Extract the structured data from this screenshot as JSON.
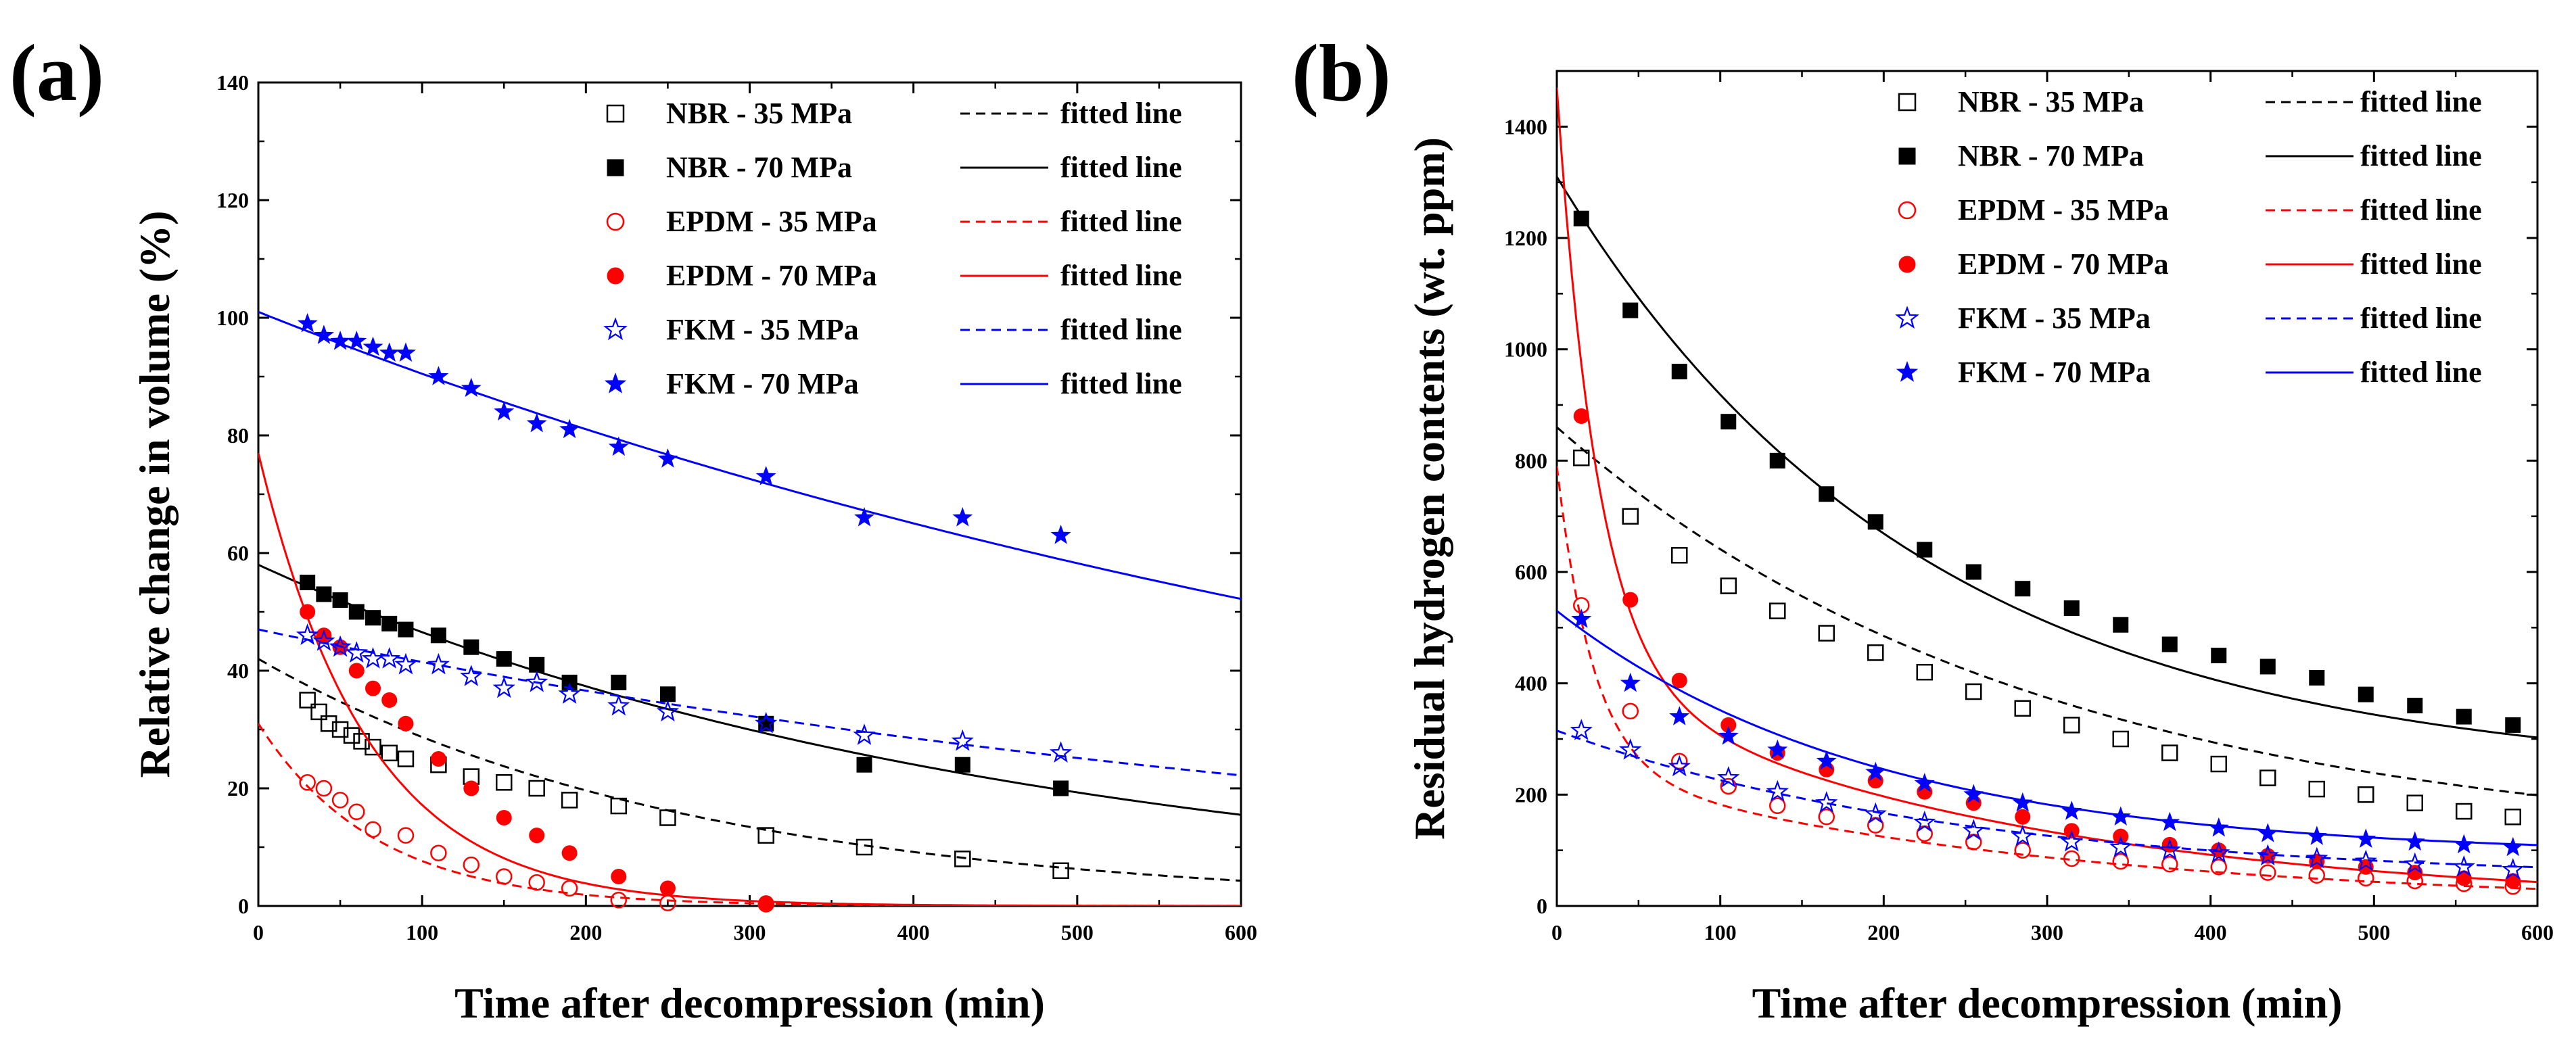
{
  "figure": {
    "panels": [
      {
        "label": "(a)",
        "xlabel": "Time after decompression (min)",
        "ylabel": "Relative change in volume (%)"
      },
      {
        "label": "(b)",
        "xlabel": "Time after decompression (min)",
        "ylabel": "Residual hydrogen contents (wt. ppm)"
      }
    ]
  },
  "colors": {
    "black": "#000000",
    "red": "#ff0000",
    "blue": "#0000ff"
  },
  "chart_data": [
    {
      "type": "scatter",
      "panel": "(a)",
      "title": "",
      "xlabel": "Time after decompression (min)",
      "ylabel": "Relative change in volume (%)",
      "xlim": [
        0,
        600
      ],
      "ylim": [
        0,
        140
      ],
      "xticks": [
        0,
        100,
        200,
        300,
        400,
        500,
        600
      ],
      "yticks": [
        0,
        20,
        40,
        60,
        80,
        100,
        120,
        140
      ],
      "legend": "top-right",
      "series": [
        {
          "name": "NBR - 35 MPa",
          "marker": "square-open",
          "color": "#000000",
          "fit_label": "fitted line",
          "fit_style": "dashed",
          "x": [
            30,
            37,
            43,
            50,
            57,
            63,
            70,
            80,
            90,
            110,
            130,
            150,
            170,
            190,
            220,
            250,
            310,
            370,
            430,
            490
          ],
          "y": [
            35,
            33,
            31,
            30,
            29,
            28,
            27,
            26,
            25,
            24,
            22,
            21,
            20,
            18,
            17,
            15,
            12,
            10,
            8,
            6
          ],
          "fit": {
            "a": 42,
            "k": 0.0038,
            "c": 0
          }
        },
        {
          "name": "NBR - 70 MPa",
          "marker": "square-filled",
          "color": "#000000",
          "fit_label": "fitted line",
          "fit_style": "solid",
          "x": [
            30,
            40,
            50,
            60,
            70,
            80,
            90,
            110,
            130,
            150,
            170,
            190,
            220,
            250,
            310,
            370,
            430,
            490
          ],
          "y": [
            55,
            53,
            52,
            50,
            49,
            48,
            47,
            46,
            44,
            42,
            41,
            38,
            38,
            36,
            31,
            24,
            24,
            20
          ],
          "fit": {
            "a": 58,
            "k": 0.0022,
            "c": 0
          }
        },
        {
          "name": "EPDM - 35 MPa",
          "marker": "circle-open",
          "color": "#ff0000",
          "fit_label": "fitted line",
          "fit_style": "dashed",
          "x": [
            30,
            40,
            50,
            60,
            70,
            90,
            110,
            130,
            150,
            170,
            190,
            220,
            250,
            310
          ],
          "y": [
            21,
            20,
            18,
            16,
            13,
            12,
            9,
            7,
            5,
            4,
            3,
            1,
            0.5,
            0.3
          ],
          "fit": {
            "a": 31,
            "k": 0.014,
            "c": 0
          }
        },
        {
          "name": "EPDM - 70 MPa",
          "marker": "circle-filled",
          "color": "#ff0000",
          "fit_label": "fitted line",
          "fit_style": "solid",
          "x": [
            30,
            40,
            50,
            60,
            70,
            80,
            90,
            110,
            130,
            150,
            170,
            190,
            220,
            250,
            310
          ],
          "y": [
            50,
            46,
            44,
            40,
            37,
            35,
            31,
            25,
            20,
            15,
            12,
            9,
            5,
            3,
            0.5
          ],
          "fit": {
            "a": 77,
            "k": 0.015,
            "c": 0
          }
        },
        {
          "name": "FKM - 35 MPa",
          "marker": "star-open",
          "color": "#0000ff",
          "fit_label": "fitted line",
          "fit_style": "dashed",
          "x": [
            30,
            40,
            50,
            60,
            70,
            80,
            90,
            110,
            130,
            150,
            170,
            190,
            220,
            250,
            310,
            370,
            430,
            490
          ],
          "y": [
            46,
            45,
            44,
            43,
            42,
            42,
            41,
            41,
            39,
            37,
            38,
            36,
            34,
            33,
            31,
            29,
            28,
            26
          ],
          "fit": {
            "a": 47,
            "k": 0.00125,
            "c": 0
          }
        },
        {
          "name": "FKM - 70 MPa",
          "marker": "star-filled",
          "color": "#0000ff",
          "fit_label": "fitted line",
          "fit_style": "solid",
          "x": [
            30,
            40,
            50,
            60,
            70,
            80,
            90,
            110,
            130,
            150,
            170,
            190,
            220,
            250,
            310,
            370,
            430,
            490
          ],
          "y": [
            99,
            97,
            96,
            96,
            95,
            94,
            94,
            90,
            88,
            84,
            82,
            81,
            78,
            76,
            73,
            66,
            66,
            63
          ],
          "fit": {
            "a": 101,
            "k": 0.0011,
            "c": 0
          }
        }
      ]
    },
    {
      "type": "scatter",
      "panel": "(b)",
      "title": "",
      "xlabel": "Time after decompression (min)",
      "ylabel": "Residual hydrogen contents (wt. ppm)",
      "xlim": [
        0,
        600
      ],
      "ylim": [
        0,
        1500
      ],
      "xticks": [
        0,
        100,
        200,
        300,
        400,
        500,
        600
      ],
      "yticks": [
        0,
        200,
        400,
        600,
        800,
        1000,
        1200,
        1400
      ],
      "legend": "top-right",
      "series": [
        {
          "name": "NBR - 35 MPa",
          "marker": "square-open",
          "color": "#000000",
          "fit_label": "fitted line",
          "fit_style": "dashed",
          "x": [
            15,
            45,
            75,
            105,
            135,
            165,
            195,
            225,
            255,
            285,
            315,
            345,
            375,
            405,
            435,
            465,
            495,
            525,
            555,
            585
          ],
          "y": [
            805,
            700,
            630,
            575,
            530,
            490,
            455,
            420,
            385,
            355,
            325,
            300,
            275,
            255,
            230,
            210,
            200,
            185,
            170,
            160
          ],
          "fit": {
            "a": 760,
            "k": 0.0034,
            "c": 100
          }
        },
        {
          "name": "NBR - 70 MPa",
          "marker": "square-filled",
          "color": "#000000",
          "fit_label": "fitted line",
          "fit_style": "solid",
          "x": [
            15,
            45,
            75,
            105,
            135,
            165,
            195,
            225,
            255,
            285,
            315,
            345,
            375,
            405,
            435,
            465,
            495,
            525,
            555,
            585
          ],
          "y": [
            1235,
            1070,
            960,
            870,
            800,
            740,
            690,
            640,
            600,
            570,
            535,
            505,
            470,
            450,
            430,
            410,
            380,
            360,
            340,
            325
          ],
          "fit": {
            "a": 1080,
            "k": 0.0045,
            "c": 230
          }
        },
        {
          "name": "EPDM - 35 MPa",
          "marker": "circle-open",
          "color": "#ff0000",
          "fit_label": "fitted line",
          "fit_style": "dashed",
          "x": [
            15,
            45,
            75,
            105,
            135,
            165,
            195,
            225,
            255,
            285,
            315,
            345,
            375,
            405,
            435,
            465,
            495,
            525,
            555,
            585
          ],
          "y": [
            540,
            350,
            260,
            215,
            180,
            160,
            145,
            130,
            115,
            100,
            85,
            80,
            75,
            70,
            60,
            55,
            50,
            45,
            40,
            35
          ],
          "fit": {
            "a": 540,
            "k": 0.045,
            "c": 0,
            "b": 250,
            "k2": 0.0035
          }
        },
        {
          "name": "EPDM - 70 MPa",
          "marker": "circle-filled",
          "color": "#ff0000",
          "fit_label": "fitted line",
          "fit_style": "solid",
          "x": [
            15,
            45,
            75,
            105,
            135,
            165,
            195,
            225,
            255,
            285,
            315,
            345,
            375,
            405,
            435,
            465,
            495,
            525,
            555,
            585
          ],
          "y": [
            880,
            550,
            405,
            325,
            275,
            245,
            225,
            205,
            185,
            160,
            135,
            125,
            110,
            100,
            90,
            80,
            70,
            60,
            50,
            45
          ],
          "fit": {
            "a": 1050,
            "k": 0.04,
            "c": 0,
            "b": 420,
            "k2": 0.0038
          }
        },
        {
          "name": "FKM - 35 MPa",
          "marker": "star-open",
          "color": "#0000ff",
          "fit_label": "fitted line",
          "fit_style": "dashed",
          "x": [
            15,
            45,
            75,
            105,
            135,
            165,
            195,
            225,
            255,
            285,
            315,
            345,
            375,
            405,
            435,
            465,
            495,
            525,
            555,
            585
          ],
          "y": [
            315,
            280,
            250,
            230,
            205,
            185,
            165,
            150,
            135,
            125,
            115,
            105,
            100,
            95,
            90,
            85,
            80,
            75,
            70,
            65
          ],
          "fit": {
            "a": 270,
            "k": 0.004,
            "c": 45
          }
        },
        {
          "name": "FKM - 70 MPa",
          "marker": "star-filled",
          "color": "#0000ff",
          "fit_label": "fitted line",
          "fit_style": "solid",
          "x": [
            15,
            45,
            75,
            105,
            135,
            165,
            195,
            225,
            255,
            285,
            315,
            345,
            375,
            405,
            435,
            465,
            495,
            525,
            555,
            585
          ],
          "y": [
            515,
            400,
            340,
            305,
            280,
            260,
            240,
            220,
            200,
            185,
            170,
            160,
            150,
            140,
            130,
            125,
            120,
            115,
            110,
            105
          ],
          "fit": {
            "a": 440,
            "k": 0.0052,
            "c": 90
          }
        }
      ]
    }
  ]
}
